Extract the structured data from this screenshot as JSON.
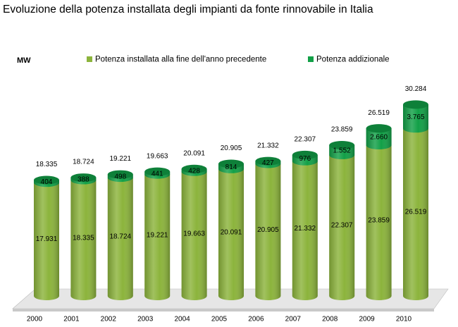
{
  "chart_data": {
    "type": "stacked-cylinder",
    "title": "Evoluzione della potenza installata degli impianti da fonte rinnovabile in Italia",
    "y_label": "MW",
    "categories": [
      "2000",
      "2001",
      "2002",
      "2003",
      "2004",
      "2005",
      "2006",
      "2007",
      "2008",
      "2009",
      "2010"
    ],
    "series": [
      {
        "name": "Potenza installata alla fine dell'anno precedente",
        "color": "#8cb43c",
        "values": [
          17931,
          18335,
          18724,
          19221,
          19663,
          20091,
          20905,
          21332,
          22307,
          23859,
          26519
        ],
        "value_labels": [
          "17.931",
          "18.335",
          "18.724",
          "19.221",
          "19.663",
          "20.091",
          "20.905",
          "21.332",
          "22.307",
          "23.859",
          "26.519"
        ]
      },
      {
        "name": "Potenza addizionale",
        "color": "#12a047",
        "values": [
          404,
          388,
          498,
          441,
          428,
          814,
          427,
          976,
          1552,
          2660,
          3765
        ],
        "value_labels": [
          "404",
          "388",
          "498",
          "441",
          "428",
          "814",
          "427",
          "976",
          "1.552",
          "2.660",
          "3.765"
        ]
      }
    ],
    "totals": {
      "values": [
        18335,
        18724,
        19221,
        19663,
        20091,
        20905,
        21332,
        22307,
        23859,
        26519,
        30284
      ],
      "value_labels": [
        "18.335",
        "18.724",
        "19.221",
        "19.663",
        "20.091",
        "20.905",
        "21.332",
        "22.307",
        "23.859",
        "26.519",
        "30.284"
      ]
    },
    "ylim": [
      0,
      32000
    ]
  }
}
